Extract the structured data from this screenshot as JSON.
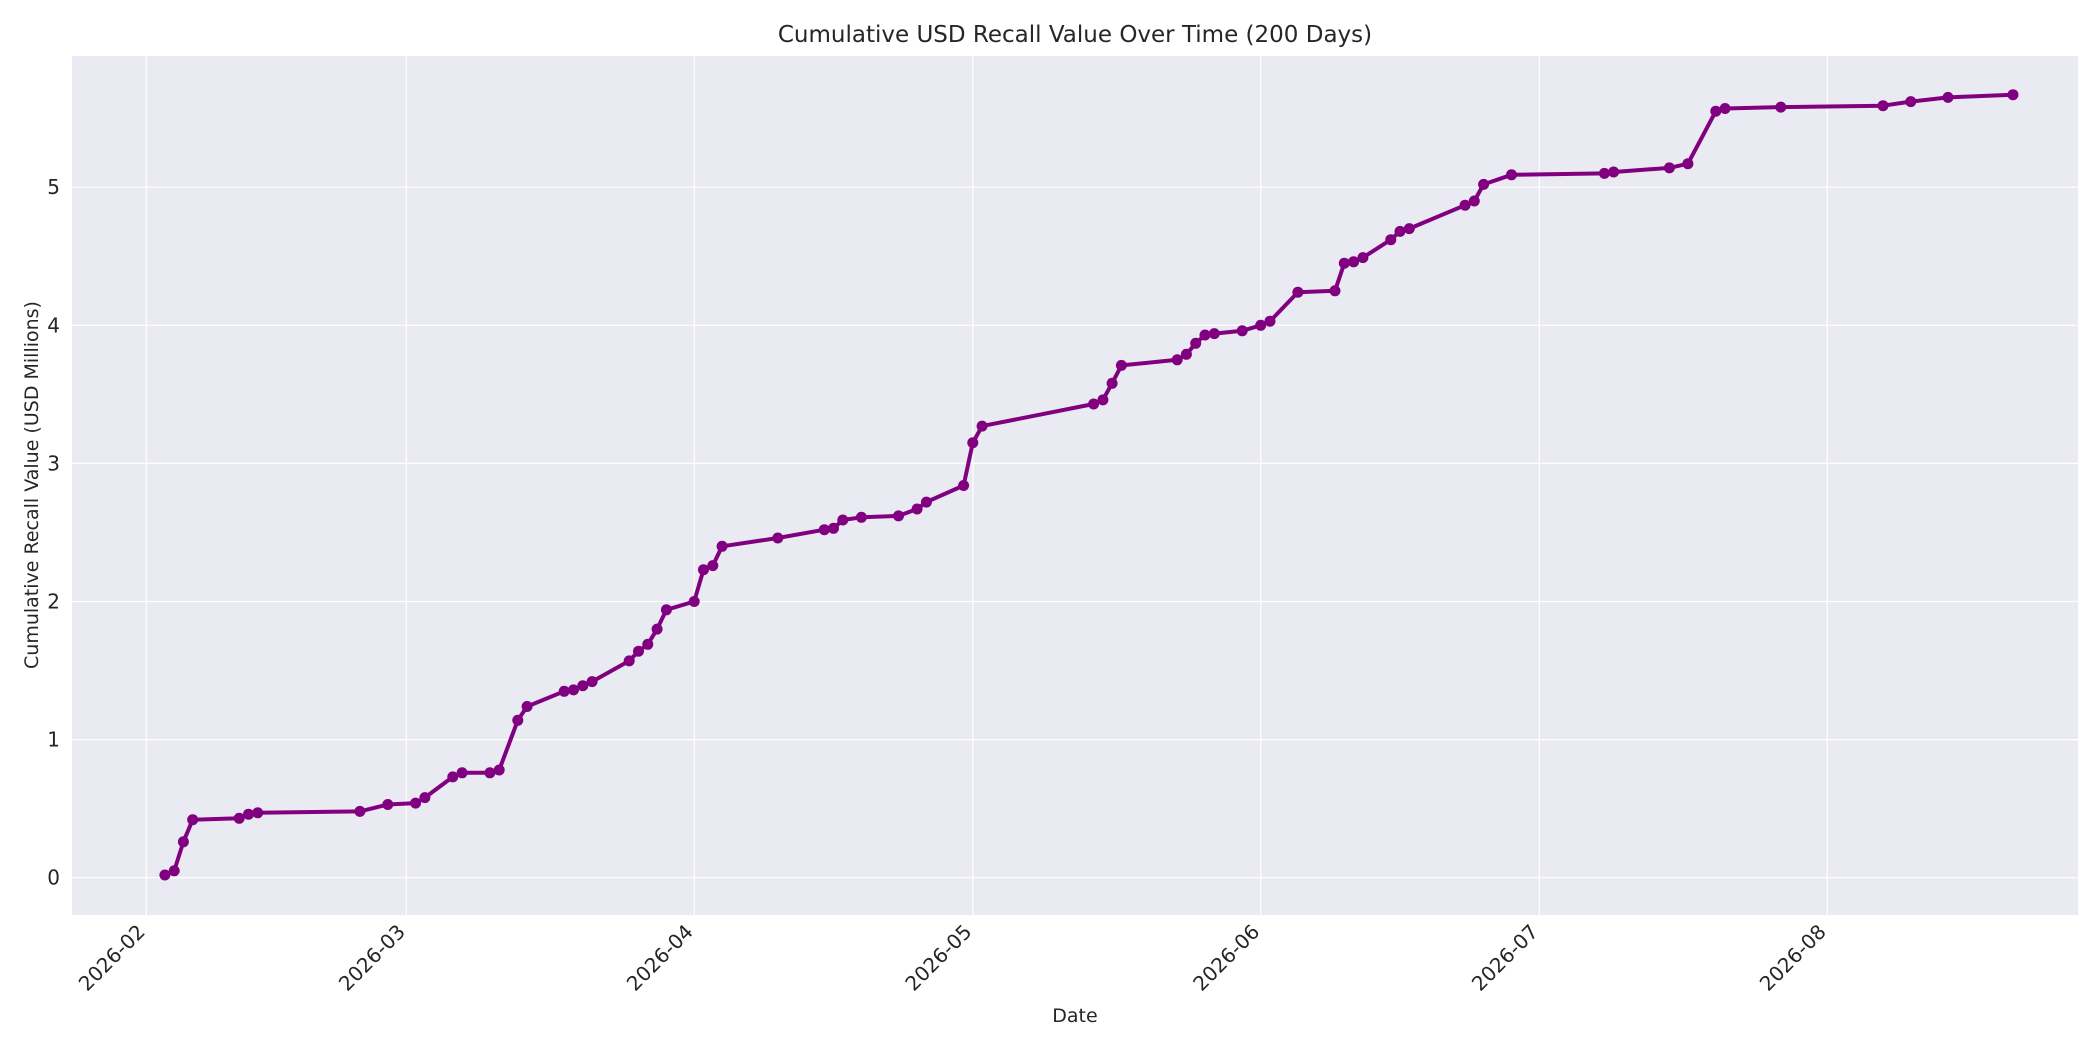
{
  "chart_data": {
    "type": "line",
    "title": "Cumulative USD Recall Value Over Time (200 Days)",
    "xlabel": "Date",
    "ylabel": "Cumulative Recall Value (USD Millions)",
    "x_ticks": [
      "2026-02",
      "2026-03",
      "2026-04",
      "2026-05",
      "2026-06",
      "2026-07",
      "2026-08"
    ],
    "x_tick_dates": [
      "2026-02-01",
      "2026-03-01",
      "2026-04-01",
      "2026-05-01",
      "2026-06-01",
      "2026-07-01",
      "2026-08-01"
    ],
    "y_ticks": [
      0,
      1,
      2,
      3,
      4,
      5
    ],
    "xlim": [
      "2026-01-24",
      "2026-08-28"
    ],
    "ylim": [
      -0.27,
      5.95
    ],
    "grid": true,
    "colors": {
      "line": "#800080",
      "plot_bg": "#eaeaf2",
      "grid": "#ffffff"
    },
    "series": [
      {
        "x": [
          "2026-02-03",
          "2026-02-04",
          "2026-02-05",
          "2026-02-06",
          "2026-02-11",
          "2026-02-12",
          "2026-02-13",
          "2026-02-24",
          "2026-02-27",
          "2026-03-02",
          "2026-03-03",
          "2026-03-06",
          "2026-03-07",
          "2026-03-10",
          "2026-03-11",
          "2026-03-13",
          "2026-03-14",
          "2026-03-18",
          "2026-03-19",
          "2026-03-20",
          "2026-03-21",
          "2026-03-25",
          "2026-03-26",
          "2026-03-27",
          "2026-03-28",
          "2026-03-29",
          "2026-04-01",
          "2026-04-02",
          "2026-04-03",
          "2026-04-04",
          "2026-04-10",
          "2026-04-15",
          "2026-04-16",
          "2026-04-17",
          "2026-04-19",
          "2026-04-23",
          "2026-04-25",
          "2026-04-26",
          "2026-04-30",
          "2026-05-01",
          "2026-05-02",
          "2026-05-14",
          "2026-05-15",
          "2026-05-16",
          "2026-05-17",
          "2026-05-23",
          "2026-05-24",
          "2026-05-25",
          "2026-05-26",
          "2026-05-27",
          "2026-05-30",
          "2026-06-01",
          "2026-06-02",
          "2026-06-05",
          "2026-06-09",
          "2026-06-10",
          "2026-06-11",
          "2026-06-12",
          "2026-06-15",
          "2026-06-16",
          "2026-06-17",
          "2026-06-23",
          "2026-06-24",
          "2026-06-25",
          "2026-06-28",
          "2026-07-08",
          "2026-07-09",
          "2026-07-15",
          "2026-07-17",
          "2026-07-20",
          "2026-07-21",
          "2026-07-27",
          "2026-08-07",
          "2026-08-10",
          "2026-08-14",
          "2026-08-21"
        ],
        "y": [
          0.02,
          0.05,
          0.26,
          0.42,
          0.43,
          0.46,
          0.47,
          0.48,
          0.53,
          0.54,
          0.58,
          0.73,
          0.76,
          0.76,
          0.78,
          1.14,
          1.24,
          1.35,
          1.36,
          1.39,
          1.42,
          1.57,
          1.64,
          1.69,
          1.8,
          1.94,
          2.0,
          2.23,
          2.26,
          2.4,
          2.46,
          2.52,
          2.53,
          2.59,
          2.61,
          2.62,
          2.67,
          2.72,
          2.84,
          3.15,
          3.27,
          3.43,
          3.46,
          3.58,
          3.71,
          3.75,
          3.79,
          3.87,
          3.93,
          3.94,
          3.96,
          4.0,
          4.03,
          4.24,
          4.25,
          4.45,
          4.46,
          4.49,
          4.62,
          4.68,
          4.7,
          4.87,
          4.9,
          5.02,
          5.09,
          5.1,
          5.11,
          5.14,
          5.17,
          5.55,
          5.57,
          5.58,
          5.59,
          5.62,
          5.65,
          5.67
        ]
      }
    ]
  }
}
